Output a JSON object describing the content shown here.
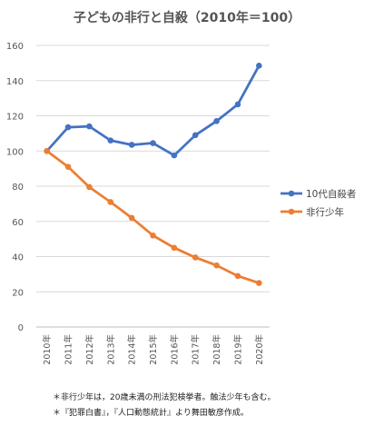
{
  "chart_data": {
    "type": "line",
    "title": "子どもの非行と自殺（2010年＝100）",
    "categories": [
      "2010年",
      "2011年",
      "2012年",
      "2013年",
      "2014年",
      "2015年",
      "2016年",
      "2017年",
      "2018年",
      "2019年",
      "2020年"
    ],
    "ylim": [
      0,
      160
    ],
    "yticks": [
      0,
      20,
      40,
      60,
      80,
      100,
      120,
      140,
      160
    ],
    "grid": true,
    "legend_position": "right",
    "series": [
      {
        "name": "10代自殺者",
        "color": "#4472c4",
        "values": [
          100,
          113.5,
          114,
          106,
          103.5,
          104.5,
          97.5,
          109,
          117,
          126.5,
          148.5
        ]
      },
      {
        "name": "非行少年",
        "color": "#ed7d31",
        "values": [
          100,
          91,
          79.5,
          71,
          62,
          52,
          45,
          39.5,
          35,
          29,
          25
        ]
      }
    ]
  },
  "notes": [
    "＊非行少年は，20歳未満の刑法犯検挙者。触法少年も含む。",
    "＊『犯罪白書』，『人口動態統計』より舞田敏彦作成。"
  ]
}
